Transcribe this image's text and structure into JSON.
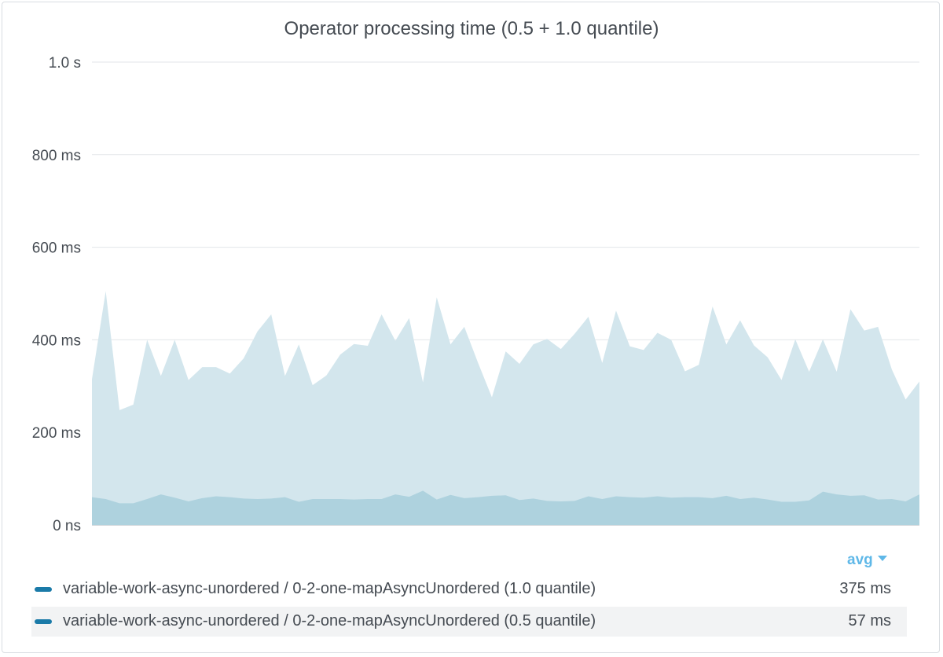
{
  "panel": {
    "title": "Operator processing time (0.5 + 1.0 quantile)",
    "aggregation_label": "avg",
    "aggregation_icon": "caret-down-icon"
  },
  "legend": [
    {
      "name": "variable-work-async-unordered / 0-2-one-mapAsyncUnordered (1.0 quantile)",
      "value": "375 ms",
      "color": "#1a7aa8"
    },
    {
      "name": "variable-work-async-unordered / 0-2-one-mapAsyncUnordered (0.5 quantile)",
      "value": "57 ms",
      "color": "#1a7aa8"
    }
  ],
  "chart_data": {
    "type": "area",
    "title": "Operator processing time (0.5 + 1.0 quantile)",
    "ylim": [
      0,
      1000
    ],
    "yunit": "ms",
    "y_tick_values": [
      0,
      200,
      400,
      600,
      800,
      1000
    ],
    "y_tick_labels": [
      "0 ns",
      "200 ms",
      "400 ms",
      "600 ms",
      "800 ms",
      "1.0 s"
    ],
    "grid": true,
    "legend_position": "bottom",
    "series": [
      {
        "name": "variable-work-async-unordered / 0-2-one-mapAsyncUnordered (1.0 quantile)",
        "color": "#d3e6ed",
        "values": [
          315,
          505,
          248,
          260,
          400,
          322,
          400,
          313,
          341,
          341,
          327,
          360,
          418,
          455,
          322,
          390,
          302,
          323,
          368,
          391,
          387,
          455,
          398,
          447,
          308,
          492,
          390,
          428,
          350,
          276,
          375,
          348,
          390,
          402,
          380,
          413,
          450,
          350,
          463,
          386,
          378,
          415,
          400,
          332,
          346,
          472,
          390,
          442,
          388,
          362,
          313,
          401,
          331,
          401,
          331,
          466,
          420,
          428,
          336,
          271,
          310
        ]
      },
      {
        "name": "variable-work-async-unordered / 0-2-one-mapAsyncUnordered (0.5 quantile)",
        "color": "#aed2de",
        "values": [
          60,
          56,
          47,
          47,
          56,
          66,
          59,
          51,
          58,
          62,
          60,
          57,
          56,
          57,
          60,
          50,
          56,
          56,
          56,
          55,
          56,
          56,
          66,
          61,
          74,
          55,
          65,
          58,
          60,
          63,
          64,
          54,
          57,
          52,
          51,
          52,
          62,
          56,
          62,
          60,
          59,
          62,
          59,
          60,
          60,
          58,
          63,
          56,
          59,
          55,
          50,
          50,
          53,
          72,
          66,
          63,
          64,
          55,
          56,
          51,
          66
        ]
      }
    ]
  }
}
